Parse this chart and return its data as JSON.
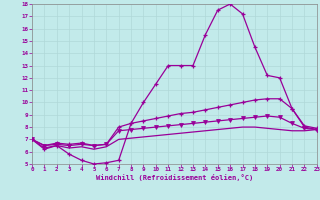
{
  "xlabel": "Windchill (Refroidissement éolien,°C)",
  "xlim": [
    0,
    23
  ],
  "ylim": [
    5,
    18
  ],
  "xticks": [
    0,
    1,
    2,
    3,
    4,
    5,
    6,
    7,
    8,
    9,
    10,
    11,
    12,
    13,
    14,
    15,
    16,
    17,
    18,
    19,
    20,
    21,
    22,
    23
  ],
  "yticks": [
    5,
    6,
    7,
    8,
    9,
    10,
    11,
    12,
    13,
    14,
    15,
    16,
    17,
    18
  ],
  "bg_color": "#c2eaea",
  "line_color": "#990099",
  "grid_color": "#b0d8d8",
  "curve1_x": [
    0,
    1,
    2,
    3,
    4,
    5,
    6,
    7,
    8,
    9,
    10,
    11,
    12,
    13,
    14,
    15,
    16,
    17,
    18,
    19,
    20,
    21,
    22,
    23
  ],
  "curve1_y": [
    7.0,
    6.2,
    6.5,
    5.8,
    5.3,
    5.0,
    5.1,
    5.3,
    8.3,
    10.0,
    11.5,
    13.0,
    13.0,
    13.0,
    15.5,
    17.5,
    18.0,
    17.2,
    14.5,
    12.2,
    12.0,
    9.5,
    8.0,
    7.8
  ],
  "curve1_markers": [
    0,
    1,
    2,
    3,
    4,
    5,
    6,
    7,
    8,
    9,
    10,
    11,
    12,
    13,
    14,
    15,
    16,
    17,
    18,
    19,
    20,
    21,
    22,
    23
  ],
  "curve2_x": [
    0,
    1,
    2,
    3,
    4,
    5,
    6,
    7,
    8,
    9,
    10,
    11,
    12,
    13,
    14,
    15,
    16,
    17,
    18,
    19,
    20,
    21,
    22,
    23
  ],
  "curve2_y": [
    7.0,
    6.5,
    6.7,
    6.6,
    6.7,
    6.5,
    6.6,
    8.0,
    8.3,
    8.5,
    8.7,
    8.9,
    9.1,
    9.2,
    9.4,
    9.6,
    9.8,
    10.0,
    10.2,
    10.3,
    10.3,
    9.5,
    8.1,
    7.9
  ],
  "curve3_x": [
    0,
    1,
    2,
    3,
    4,
    5,
    6,
    7,
    8,
    9,
    10,
    11,
    12,
    13,
    14,
    15,
    16,
    17,
    18,
    19,
    20,
    21,
    22,
    23
  ],
  "curve3_y": [
    7.0,
    6.5,
    6.6,
    6.5,
    6.6,
    6.5,
    6.6,
    7.7,
    7.8,
    7.9,
    8.0,
    8.1,
    8.2,
    8.3,
    8.4,
    8.5,
    8.6,
    8.7,
    8.8,
    8.9,
    8.8,
    8.3,
    7.9,
    7.8
  ],
  "curve4_x": [
    0,
    1,
    2,
    3,
    4,
    5,
    6,
    7,
    8,
    9,
    10,
    11,
    12,
    13,
    14,
    15,
    16,
    17,
    18,
    19,
    20,
    21,
    22,
    23
  ],
  "curve4_y": [
    7.0,
    6.3,
    6.5,
    6.3,
    6.4,
    6.2,
    6.4,
    7.0,
    7.1,
    7.2,
    7.3,
    7.4,
    7.5,
    7.6,
    7.7,
    7.8,
    7.9,
    8.0,
    8.0,
    7.9,
    7.8,
    7.7,
    7.7,
    7.8
  ]
}
